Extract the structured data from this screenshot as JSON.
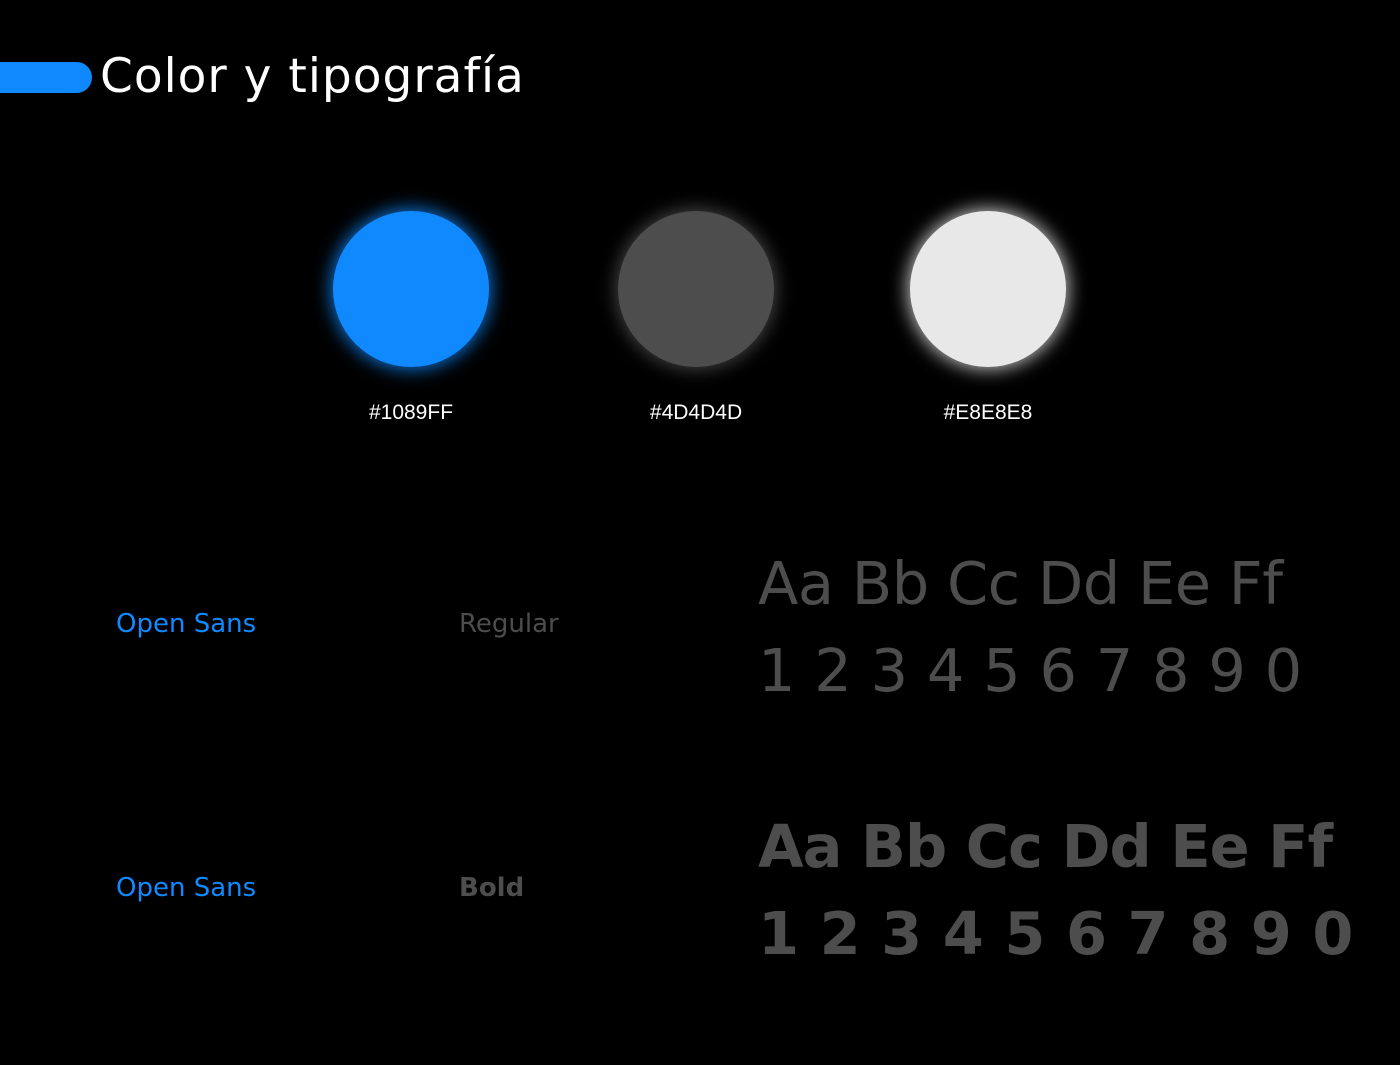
{
  "header": {
    "title": "Color y tipografía"
  },
  "palette": [
    {
      "hex_label": "#1089FF",
      "color": "#1089FF",
      "glow": "rgba(16,137,255,0.85)"
    },
    {
      "hex_label": "#4D4D4D",
      "color": "#4D4D4D",
      "glow": "rgba(77,77,77,0.9)"
    },
    {
      "hex_label": "#E8E8E8",
      "color": "#E8E8E8",
      "glow": "rgba(232,232,232,0.85)"
    }
  ],
  "typography": [
    {
      "font_name": "Open Sans",
      "weight": "Regular",
      "specimen_letters": "Aa Bb Cc Dd Ee Ff",
      "specimen_digits": "1 2 3 4 5 6 7 8 9 0"
    },
    {
      "font_name": "Open Sans",
      "weight": "Bold",
      "specimen_letters": "Aa Bb Cc Dd Ee Ff",
      "specimen_digits": "1 2 3 4 5 6 7 8 9 0"
    }
  ],
  "colors": {
    "background": "#000000",
    "title_text": "#FFFFFF",
    "accent": "#1089FF",
    "font_name_text": "#1089FF",
    "weight_text": "#4D4D4D",
    "specimen_text": "#4D4D4D"
  }
}
